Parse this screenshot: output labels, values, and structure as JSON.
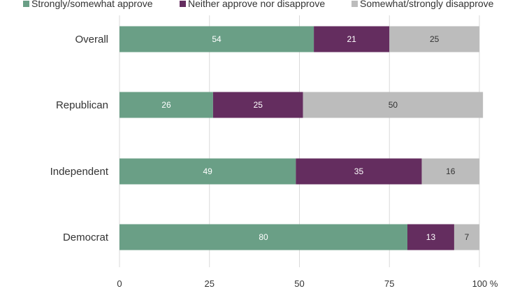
{
  "chart_data": {
    "type": "bar",
    "orientation": "horizontal",
    "stacked": true,
    "categories": [
      "Overall",
      "Republican",
      "Independent",
      "Democrat"
    ],
    "series": [
      {
        "name": "Strongly/somewhat approve",
        "values": [
          54,
          26,
          49,
          80
        ],
        "color": "#6a9f86"
      },
      {
        "name": "Neither approve nor disapprove",
        "values": [
          21,
          25,
          35,
          13
        ],
        "color": "#642d5f"
      },
      {
        "name": "Somewhat/strongly disapprove",
        "values": [
          25,
          50,
          16,
          7
        ],
        "color": "#bcbcbc"
      }
    ],
    "data_label_colors": [
      "#ffffff",
      "#ffffff",
      "#333333"
    ],
    "x_ticks": [
      "0",
      "25",
      "50",
      "75",
      "100 %"
    ],
    "xlim": [
      0,
      100
    ],
    "grid": true,
    "legend_position": "top"
  }
}
